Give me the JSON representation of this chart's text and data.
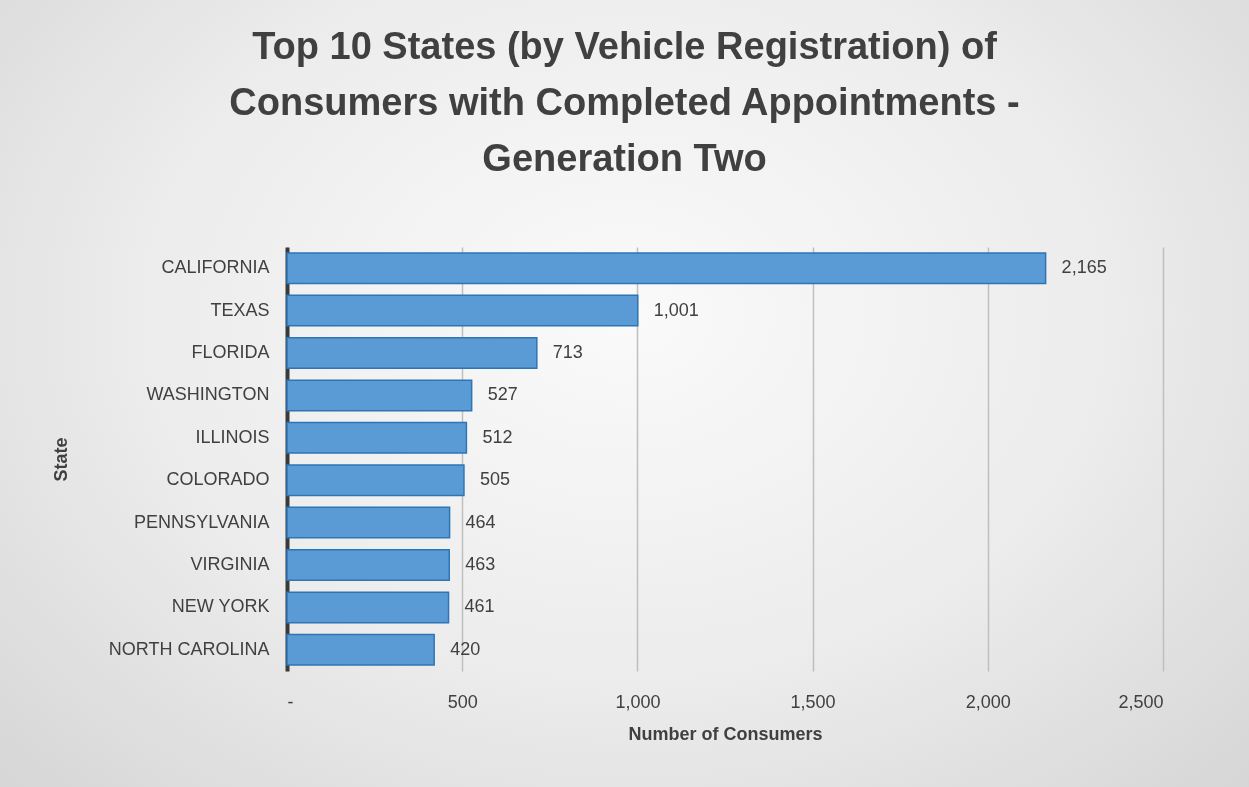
{
  "chart_data": {
    "type": "bar",
    "orientation": "horizontal",
    "title": "Top 10 States (by Vehicle Registration) of Consumers with Completed Appointments - Generation Two",
    "xlabel": "Number of Consumers",
    "ylabel": "State",
    "categories": [
      "CALIFORNIA",
      "TEXAS",
      "FLORIDA",
      "WASHINGTON",
      "ILLINOIS",
      "COLORADO",
      "PENNSYLVANIA",
      "VIRGINIA",
      "NEW YORK",
      "NORTH CAROLINA"
    ],
    "values": [
      2165,
      1001,
      713,
      527,
      512,
      505,
      464,
      463,
      461,
      420
    ],
    "color": "#5b9bd5",
    "value_labels": [
      "2,165",
      "1,001",
      "713",
      "527",
      "512",
      "505",
      "464",
      "463",
      "461",
      "420"
    ],
    "xlim": [
      0,
      2500
    ],
    "xticks": [
      {
        "value": 0,
        "label": "-"
      },
      500,
      {
        "value": 1000,
        "label": "1,000"
      },
      {
        "value": 1500,
        "label": "1,500"
      },
      {
        "value": 2000,
        "label": "2,000"
      },
      {
        "value": 2500,
        "label": "2,500"
      }
    ],
    "grid": "x"
  }
}
